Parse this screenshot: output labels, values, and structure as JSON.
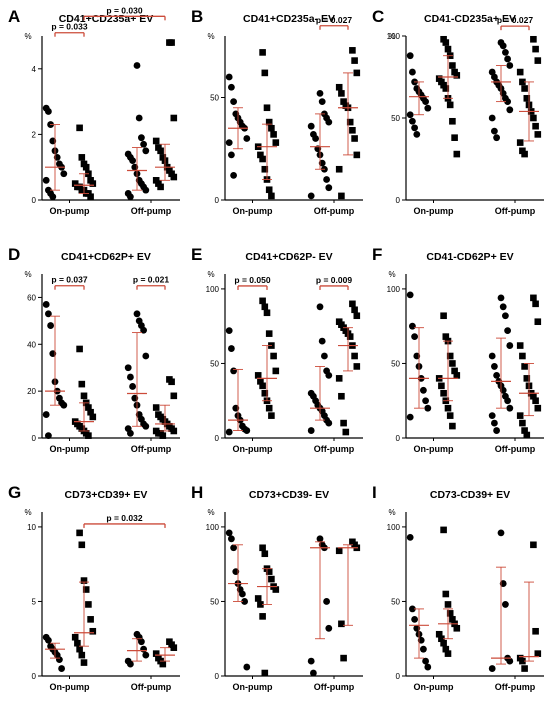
{
  "figure": {
    "colors": {
      "errorbar": "#cc4b3a",
      "marker": "#000000",
      "axis": "#000000"
    },
    "group_labels": [
      "On-pump",
      "Off-pump"
    ],
    "marker_shapes": [
      "circle",
      "square"
    ]
  },
  "chart_data": [
    {
      "panel": "A",
      "title": "CD41+CD235a+ EV",
      "type": "scatter",
      "ylabel": "%",
      "ylim": [
        0,
        5
      ],
      "yticks": [
        0,
        2,
        4
      ],
      "categories": [
        "On-pump",
        "Off-pump"
      ],
      "series": [
        {
          "marker": "circle",
          "group": 0,
          "values": [
            2.8,
            2.7,
            2.3,
            1.8,
            1.5,
            1.3,
            1.1,
            1.0,
            0.8,
            0.6,
            0.3,
            0.2,
            0.1
          ],
          "median": 1.0,
          "range": [
            0.3,
            2.3
          ]
        },
        {
          "marker": "square",
          "group": 0,
          "values": [
            2.2,
            1.3,
            1.1,
            1.0,
            0.8,
            0.6,
            0.5,
            0.5,
            0.4,
            0.4,
            0.3,
            0.3,
            0.2,
            0.2,
            0.1
          ],
          "median": 0.45,
          "range": [
            0.2,
            0.8
          ]
        },
        {
          "marker": "circle",
          "group": 1,
          "values": [
            4.1,
            2.5,
            1.9,
            1.7,
            1.5,
            1.4,
            1.3,
            1.2,
            1.0,
            0.8,
            0.6,
            0.5,
            0.4,
            0.3,
            0.2,
            0.1
          ],
          "median": 0.9,
          "range": [
            0.3,
            1.6
          ]
        },
        {
          "marker": "square",
          "group": 1,
          "values": [
            4.8,
            4.8,
            2.5,
            1.8,
            1.6,
            1.5,
            1.3,
            1.2,
            1.0,
            0.9,
            0.8,
            0.7,
            0.6,
            0.5,
            0.4
          ],
          "median": 1.0,
          "range": [
            0.6,
            1.7
          ]
        }
      ],
      "annotations": [
        {
          "text": "p = 0.033",
          "from": 0,
          "to": 1,
          "y": 5.1
        },
        {
          "text": "p = 0.030",
          "from": 1,
          "to": 3,
          "y": 5.6
        }
      ]
    },
    {
      "panel": "B",
      "title": "CD41+CD235a- EV",
      "type": "scatter",
      "ylabel": "%",
      "ylim": [
        0,
        80
      ],
      "yticks": [
        0,
        50
      ],
      "categories": [
        "On-pump",
        "Off-pump"
      ],
      "series": [
        {
          "marker": "circle",
          "group": 0,
          "values": [
            60,
            55,
            48,
            42,
            40,
            38,
            36,
            35,
            30,
            28,
            22,
            12
          ],
          "median": 35,
          "range": [
            25,
            45
          ]
        },
        {
          "marker": "square",
          "group": 0,
          "values": [
            72,
            62,
            45,
            38,
            35,
            32,
            28,
            26,
            22,
            20,
            15,
            10,
            5,
            2
          ],
          "median": 26,
          "range": [
            10,
            37
          ]
        },
        {
          "marker": "circle",
          "group": 1,
          "values": [
            52,
            48,
            42,
            40,
            38,
            36,
            32,
            30,
            25,
            22,
            18,
            15,
            10,
            6,
            2
          ],
          "median": 26,
          "range": [
            15,
            42
          ]
        },
        {
          "marker": "square",
          "group": 1,
          "values": [
            73,
            68,
            62,
            55,
            52,
            48,
            46,
            45,
            38,
            34,
            30,
            22,
            15,
            2
          ],
          "median": 45,
          "range": [
            22,
            62
          ]
        }
      ],
      "annotations": [
        {
          "text": "p = 0.027",
          "from": 2,
          "to": 3,
          "y": 85
        }
      ]
    },
    {
      "panel": "C",
      "title": "CD41-CD235a+ EV",
      "type": "scatter",
      "ylabel": "%",
      "ylim": [
        0,
        100
      ],
      "yticks": [
        0,
        50,
        100
      ],
      "categories": [
        "On-pump",
        "Off-pump"
      ],
      "series": [
        {
          "marker": "circle",
          "group": 0,
          "values": [
            88,
            78,
            72,
            68,
            66,
            64,
            62,
            60,
            56,
            52,
            48,
            44,
            40
          ],
          "median": 63,
          "range": [
            52,
            72
          ]
        },
        {
          "marker": "square",
          "group": 0,
          "values": [
            98,
            96,
            92,
            88,
            82,
            78,
            76,
            74,
            72,
            70,
            68,
            62,
            58,
            48,
            38,
            28
          ],
          "median": 75,
          "range": [
            62,
            88
          ]
        },
        {
          "marker": "circle",
          "group": 1,
          "values": [
            96,
            94,
            90,
            86,
            82,
            78,
            75,
            72,
            70,
            68,
            65,
            62,
            60,
            55,
            50,
            42,
            38
          ],
          "median": 72,
          "range": [
            60,
            82
          ]
        },
        {
          "marker": "square",
          "group": 1,
          "values": [
            98,
            92,
            85,
            78,
            72,
            68,
            62,
            58,
            54,
            50,
            45,
            40,
            35,
            30,
            28
          ],
          "median": 54,
          "range": [
            36,
            72
          ]
        }
      ],
      "annotations": [
        {
          "text": "p = 0.027",
          "from": 2,
          "to": 3,
          "y": 106
        }
      ]
    },
    {
      "panel": "D",
      "title": "CD41+CD62P+ EV",
      "type": "scatter",
      "ylabel": "%",
      "ylim": [
        0,
        70
      ],
      "yticks": [
        0,
        20,
        40,
        60
      ],
      "categories": [
        "On-pump",
        "Off-pump"
      ],
      "series": [
        {
          "marker": "circle",
          "group": 0,
          "values": [
            57,
            53,
            48,
            36,
            24,
            20,
            17,
            15,
            14,
            10,
            1
          ],
          "median": 20,
          "range": [
            14,
            52
          ]
        },
        {
          "marker": "square",
          "group": 0,
          "values": [
            38,
            23,
            18,
            15,
            13,
            11,
            9,
            7,
            6,
            5,
            4,
            3,
            2,
            1
          ],
          "median": 7,
          "range": [
            3,
            15
          ]
        },
        {
          "marker": "circle",
          "group": 1,
          "values": [
            53,
            50,
            48,
            46,
            35,
            30,
            26,
            22,
            17,
            14,
            10,
            8,
            6,
            5,
            4,
            2
          ],
          "median": 19,
          "range": [
            5,
            45
          ]
        },
        {
          "marker": "square",
          "group": 1,
          "values": [
            25,
            24,
            18,
            13,
            10,
            9,
            8,
            7,
            6,
            5,
            4,
            3,
            3,
            2,
            2,
            1
          ],
          "median": 6,
          "range": [
            3,
            14
          ]
        }
      ],
      "annotations": [
        {
          "text": "p = 0.037",
          "from": 0,
          "to": 1,
          "y": 65
        },
        {
          "text": "p = 0.021",
          "from": 2,
          "to": 3,
          "y": 65
        }
      ]
    },
    {
      "panel": "E",
      "title": "CD41+CD62P- EV",
      "type": "scatter",
      "ylabel": "%",
      "ylim": [
        0,
        110
      ],
      "yticks": [
        0,
        50,
        100
      ],
      "categories": [
        "On-pump",
        "Off-pump"
      ],
      "series": [
        {
          "marker": "circle",
          "group": 0,
          "values": [
            72,
            60,
            45,
            20,
            15,
            12,
            8,
            6,
            5,
            4
          ],
          "median": 12,
          "range": [
            5,
            46
          ]
        },
        {
          "marker": "square",
          "group": 0,
          "values": [
            92,
            88,
            84,
            70,
            62,
            55,
            45,
            42,
            38,
            35,
            30,
            25,
            20,
            15
          ],
          "median": 40,
          "range": [
            25,
            62
          ]
        },
        {
          "marker": "circle",
          "group": 1,
          "values": [
            88,
            65,
            55,
            45,
            42,
            30,
            28,
            25,
            22,
            20,
            18,
            15,
            12,
            10,
            5
          ],
          "median": 20,
          "range": [
            12,
            48
          ]
        },
        {
          "marker": "square",
          "group": 1,
          "values": [
            90,
            86,
            82,
            78,
            76,
            74,
            72,
            70,
            68,
            62,
            55,
            48,
            40,
            28,
            10,
            4
          ],
          "median": 62,
          "range": [
            45,
            74
          ]
        }
      ],
      "annotations": [
        {
          "text": "p = 0.050",
          "from": 0,
          "to": 1,
          "y": 102
        },
        {
          "text": "p = 0.009",
          "from": 2,
          "to": 3,
          "y": 102
        }
      ]
    },
    {
      "panel": "F",
      "title": "CD41-CD62P+ EV",
      "type": "scatter",
      "ylabel": "%",
      "ylim": [
        0,
        110
      ],
      "yticks": [
        0,
        50,
        100
      ],
      "categories": [
        "On-pump",
        "Off-pump"
      ],
      "series": [
        {
          "marker": "circle",
          "group": 0,
          "values": [
            96,
            75,
            68,
            55,
            48,
            40,
            32,
            25,
            20,
            14
          ],
          "median": 40,
          "range": [
            20,
            74
          ]
        },
        {
          "marker": "square",
          "group": 0,
          "values": [
            82,
            68,
            65,
            55,
            50,
            45,
            42,
            40,
            35,
            30,
            25,
            20,
            15,
            8
          ],
          "median": 40,
          "range": [
            25,
            65
          ]
        },
        {
          "marker": "circle",
          "group": 1,
          "values": [
            94,
            88,
            82,
            72,
            62,
            55,
            48,
            42,
            38,
            35,
            32,
            28,
            25,
            20,
            15,
            10,
            5
          ],
          "median": 38,
          "range": [
            20,
            67
          ]
        },
        {
          "marker": "square",
          "group": 1,
          "values": [
            94,
            90,
            78,
            62,
            55,
            48,
            40,
            35,
            30,
            28,
            25,
            20,
            15,
            10,
            5,
            2
          ],
          "median": 30,
          "range": [
            15,
            50
          ]
        }
      ]
    },
    {
      "panel": "G",
      "title": "CD73+CD39+ EV",
      "type": "scatter",
      "ylabel": "%",
      "ylim": [
        0,
        11
      ],
      "yticks": [
        0,
        5,
        10
      ],
      "categories": [
        "On-pump",
        "Off-pump"
      ],
      "series": [
        {
          "marker": "circle",
          "group": 0,
          "values": [
            2.6,
            2.4,
            2.0,
            1.8,
            1.6,
            1.4,
            1.1,
            0.5
          ],
          "median": 1.8,
          "range": [
            1.2,
            2.2
          ]
        },
        {
          "marker": "square",
          "group": 0,
          "values": [
            9.6,
            8.8,
            6.4,
            5.8,
            4.8,
            3.8,
            3.0,
            2.6,
            2.2,
            1.8,
            1.4,
            0.9
          ],
          "median": 2.9,
          "range": [
            2.0,
            6.3
          ]
        },
        {
          "marker": "circle",
          "group": 1,
          "values": [
            2.8,
            2.6,
            2.3,
            1.8,
            1.4,
            1.0,
            0.8
          ],
          "median": 1.7,
          "range": [
            1.0,
            2.5
          ]
        },
        {
          "marker": "square",
          "group": 1,
          "values": [
            2.3,
            2.1,
            1.9,
            1.5,
            1.2,
            1.0,
            0.8
          ],
          "median": 1.4,
          "range": [
            1.0,
            1.9
          ]
        }
      ],
      "annotations": [
        {
          "text": "p = 0.032",
          "from": 1,
          "to": 3,
          "y": 10.2
        }
      ]
    },
    {
      "panel": "H",
      "title": "CD73+CD39- EV",
      "type": "scatter",
      "ylabel": "%",
      "ylim": [
        0,
        110
      ],
      "yticks": [
        0,
        50,
        100
      ],
      "categories": [
        "On-pump",
        "Off-pump"
      ],
      "series": [
        {
          "marker": "circle",
          "group": 0,
          "values": [
            96,
            92,
            86,
            70,
            62,
            58,
            55,
            50,
            6
          ],
          "median": 62,
          "range": [
            50,
            88
          ]
        },
        {
          "marker": "square",
          "group": 0,
          "values": [
            86,
            82,
            72,
            70,
            65,
            60,
            58,
            52,
            48,
            40,
            2
          ],
          "median": 60,
          "range": [
            48,
            72
          ]
        },
        {
          "marker": "circle",
          "group": 1,
          "values": [
            92,
            88,
            86,
            50,
            32,
            10,
            2
          ],
          "median": 86,
          "range": [
            25,
            90
          ]
        },
        {
          "marker": "square",
          "group": 1,
          "values": [
            90,
            88,
            86,
            84,
            35,
            12
          ],
          "median": 86,
          "range": [
            34,
            88
          ]
        }
      ]
    },
    {
      "panel": "I",
      "title": "CD73-CD39+ EV",
      "type": "scatter",
      "ylabel": "%",
      "ylim": [
        0,
        110
      ],
      "yticks": [
        0,
        50,
        100
      ],
      "categories": [
        "On-pump",
        "Off-pump"
      ],
      "series": [
        {
          "marker": "circle",
          "group": 0,
          "values": [
            93,
            45,
            38,
            32,
            28,
            24,
            18,
            10,
            6
          ],
          "median": 34,
          "range": [
            12,
            45
          ]
        },
        {
          "marker": "square",
          "group": 0,
          "values": [
            98,
            55,
            48,
            42,
            38,
            35,
            32,
            28,
            25,
            22,
            18,
            15
          ],
          "median": 35,
          "range": [
            25,
            45
          ]
        },
        {
          "marker": "circle",
          "group": 1,
          "values": [
            96,
            62,
            48,
            12,
            10,
            5
          ],
          "median": 12,
          "range": [
            8,
            73
          ]
        },
        {
          "marker": "square",
          "group": 1,
          "values": [
            88,
            30,
            15,
            12,
            10,
            5
          ],
          "median": 13,
          "range": [
            10,
            63
          ]
        }
      ]
    }
  ]
}
